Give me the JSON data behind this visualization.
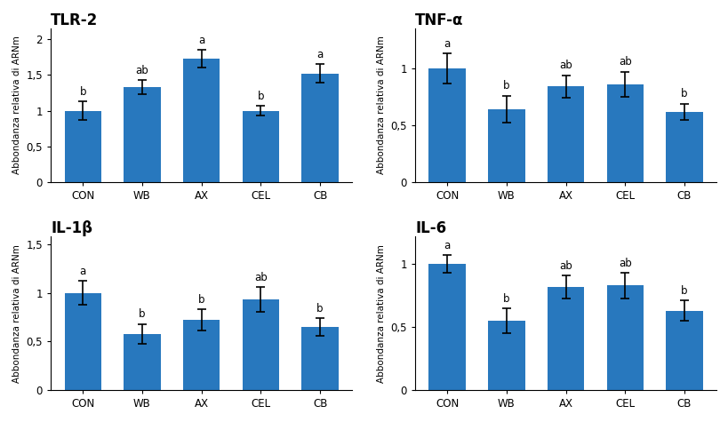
{
  "subplots": [
    {
      "title": "TLR-2",
      "categories": [
        "CON",
        "WB",
        "AX",
        "CEL",
        "CB"
      ],
      "values": [
        1.0,
        1.33,
        1.73,
        1.0,
        1.52
      ],
      "errors": [
        0.13,
        0.1,
        0.12,
        0.07,
        0.13
      ],
      "letters": [
        "b",
        "ab",
        "a",
        "b",
        "a"
      ],
      "ylim": [
        0,
        2.15
      ],
      "yticks": [
        0,
        0.5,
        1.0,
        1.5,
        2.0
      ],
      "ytick_labels": [
        "0",
        "0,5",
        "1",
        "1,5",
        "2"
      ]
    },
    {
      "title": "TNF-α",
      "categories": [
        "CON",
        "WB",
        "AX",
        "CEL",
        "CB"
      ],
      "values": [
        1.0,
        0.64,
        0.84,
        0.86,
        0.62
      ],
      "errors": [
        0.13,
        0.12,
        0.1,
        0.11,
        0.07
      ],
      "letters": [
        "a",
        "b",
        "ab",
        "ab",
        "b"
      ],
      "ylim": [
        0,
        1.35
      ],
      "yticks": [
        0,
        0.5,
        1.0
      ],
      "ytick_labels": [
        "0",
        "0,5",
        "1"
      ]
    },
    {
      "title": "IL-1β",
      "categories": [
        "CON",
        "WB",
        "AX",
        "CEL",
        "CB"
      ],
      "values": [
        1.0,
        0.58,
        0.72,
        0.93,
        0.65
      ],
      "errors": [
        0.12,
        0.1,
        0.11,
        0.13,
        0.09
      ],
      "letters": [
        "a",
        "b",
        "b",
        "ab",
        "b"
      ],
      "ylim": [
        0,
        1.58
      ],
      "yticks": [
        0,
        0.5,
        1.0,
        1.5
      ],
      "ytick_labels": [
        "0",
        "0,5",
        "1",
        "1,5"
      ]
    },
    {
      "title": "IL-6",
      "categories": [
        "CON",
        "WB",
        "AX",
        "CEL",
        "CB"
      ],
      "values": [
        1.0,
        0.55,
        0.82,
        0.83,
        0.63
      ],
      "errors": [
        0.07,
        0.1,
        0.09,
        0.1,
        0.08
      ],
      "letters": [
        "a",
        "b",
        "ab",
        "ab",
        "b"
      ],
      "ylim": [
        0,
        1.22
      ],
      "yticks": [
        0,
        0.5,
        1.0
      ],
      "ytick_labels": [
        "0",
        "0,5",
        "1"
      ]
    }
  ],
  "bar_color": "#2878BE",
  "ylabel": "Abbondanza relativa di ARNm",
  "bar_width": 0.62,
  "background_color": "#ffffff",
  "letter_fontsize": 8.5,
  "title_fontsize": 12,
  "axis_label_fontsize": 7.5,
  "tick_fontsize": 8.5
}
